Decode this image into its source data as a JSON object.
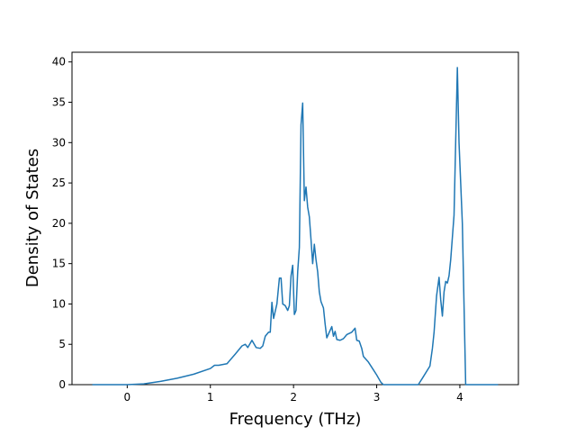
{
  "chart_data": {
    "type": "line",
    "x_label": "Frequency (THz)",
    "y_label": "Density of States",
    "x": [
      -0.42,
      0,
      0.2,
      0.4,
      0.6,
      0.8,
      1.0,
      1.05,
      1.1,
      1.2,
      1.3,
      1.38,
      1.42,
      1.45,
      1.5,
      1.55,
      1.6,
      1.63,
      1.66,
      1.7,
      1.72,
      1.74,
      1.76,
      1.8,
      1.83,
      1.85,
      1.87,
      1.9,
      1.93,
      1.95,
      1.97,
      1.99,
      2.01,
      2.03,
      2.05,
      2.07,
      2.09,
      2.11,
      2.13,
      2.15,
      2.17,
      2.19,
      2.21,
      2.23,
      2.25,
      2.27,
      2.29,
      2.31,
      2.33,
      2.36,
      2.38,
      2.4,
      2.43,
      2.46,
      2.48,
      2.5,
      2.52,
      2.56,
      2.6,
      2.64,
      2.7,
      2.74,
      2.76,
      2.79,
      2.82,
      2.84,
      2.9,
      2.95,
      3.0,
      3.05,
      3.08,
      3.5,
      3.55,
      3.64,
      3.67,
      3.69,
      3.72,
      3.75,
      3.77,
      3.79,
      3.81,
      3.83,
      3.85,
      3.87,
      3.89,
      3.93,
      3.97,
      3.99,
      4.01,
      4.03,
      4.05,
      4.07,
      4.46
    ],
    "series": [
      {
        "color": "#1f77b4",
        "values": [
          0,
          0,
          0.1,
          0.4,
          0.8,
          1.3,
          2.0,
          2.4,
          2.4,
          2.6,
          3.8,
          4.8,
          5.0,
          4.6,
          5.5,
          4.6,
          4.5,
          4.8,
          6.0,
          6.5,
          6.5,
          10.2,
          8.2,
          10.0,
          13.2,
          13.2,
          10.0,
          9.8,
          9.2,
          9.8,
          13.5,
          14.8,
          8.7,
          9.2,
          14.0,
          17.0,
          32.2,
          34.9,
          22.8,
          24.5,
          22.0,
          20.8,
          18.0,
          15.0,
          17.4,
          15.5,
          14.0,
          11.5,
          10.3,
          9.5,
          7.5,
          5.8,
          6.5,
          7.2,
          6.0,
          6.6,
          5.6,
          5.5,
          5.7,
          6.2,
          6.5,
          7.0,
          5.5,
          5.4,
          4.5,
          3.5,
          2.8,
          2.0,
          1.2,
          0.3,
          0,
          0,
          0.8,
          2.3,
          4.5,
          6.5,
          11.0,
          13.3,
          10.5,
          8.5,
          11.5,
          12.8,
          12.6,
          13.5,
          15.5,
          21.0,
          39.3,
          30.0,
          25.0,
          20.0,
          10.0,
          0,
          0
        ]
      }
    ],
    "xlim": [
      -0.664,
      4.704
    ],
    "ylim": [
      0,
      41.2
    ],
    "xticks": [
      0,
      1,
      2,
      3,
      4
    ],
    "yticks": [
      0,
      5,
      10,
      15,
      20,
      25,
      30,
      35,
      40
    ]
  }
}
